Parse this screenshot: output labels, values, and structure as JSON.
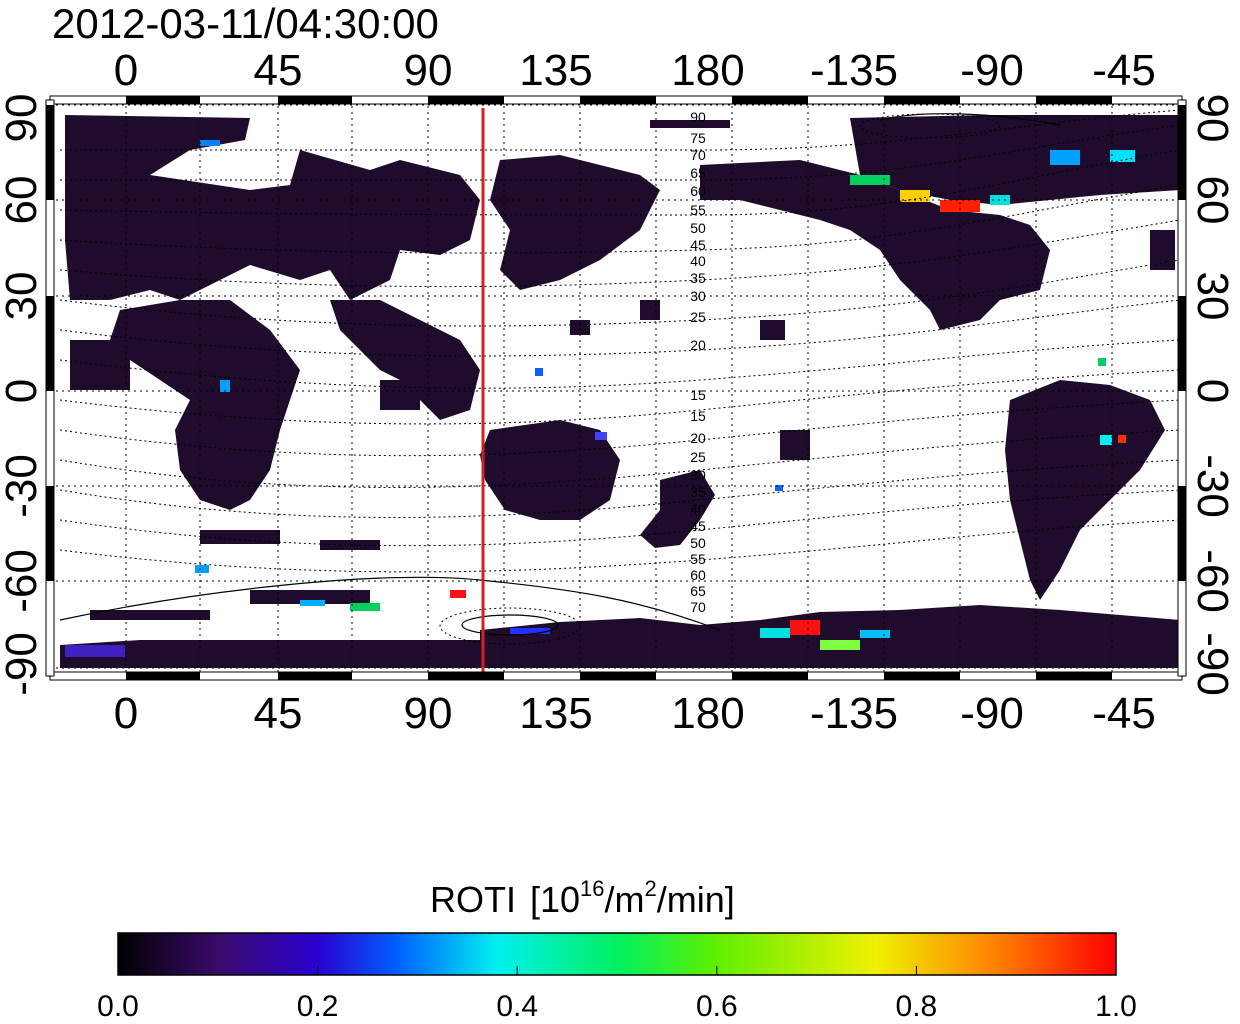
{
  "title": "2012-03-11/04:30:00",
  "map": {
    "lon_ticks": [
      "0",
      "45",
      "90",
      "135",
      "180",
      "-135",
      "-90",
      "-45"
    ],
    "lat_ticks": [
      "-90",
      "-60",
      "-30",
      "0",
      "30",
      "60",
      "90"
    ],
    "meridian_line_lon": 110,
    "meridian_line_color": "#d42020",
    "mlat_labels": [
      "90",
      "75",
      "70",
      "65",
      "60",
      "55",
      "50",
      "45",
      "40",
      "35",
      "30",
      "25",
      "20",
      "15",
      "15",
      "20",
      "25",
      "30",
      "35",
      "40",
      "45",
      "50",
      "55",
      "60",
      "65",
      "70",
      "75"
    ],
    "activity_color_ocean": "#ffffff",
    "activity_color_background": "#1f0c2c"
  },
  "colorbar": {
    "title": "ROTI",
    "unit_base": "[10",
    "unit_exp1": "16",
    "unit_mid": "/m",
    "unit_exp2": "2",
    "unit_end": "/min]",
    "tick_labels": [
      "0.0",
      "0.2",
      "0.4",
      "0.6",
      "0.8",
      "1.0"
    ],
    "min": 0.0,
    "max": 1.0,
    "stops": [
      "#000000",
      "#3a0a6a",
      "#2a00d0",
      "#0060ff",
      "#00f0f0",
      "#00f060",
      "#60f000",
      "#f0f000",
      "#ff8000",
      "#ff0000"
    ]
  }
}
